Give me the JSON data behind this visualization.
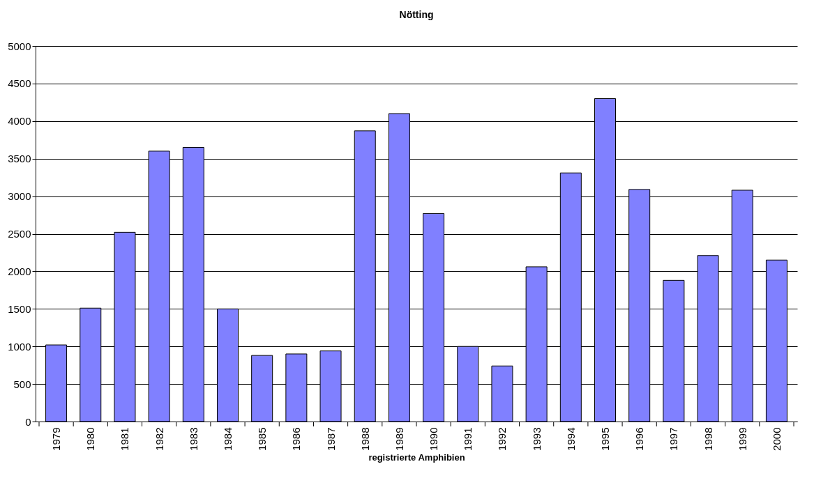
{
  "chart_data": {
    "type": "bar",
    "title": "Nötting",
    "xlabel": "registrierte Amphibien",
    "categories": [
      "1979",
      "1980",
      "1981",
      "1982",
      "1983",
      "1984",
      "1985",
      "1986",
      "1987",
      "1988",
      "1989",
      "1990",
      "1991",
      "1992",
      "1993",
      "1994",
      "1995",
      "1996",
      "1997",
      "1998",
      "1999",
      "2000"
    ],
    "values": [
      1020,
      1510,
      2520,
      3600,
      3650,
      1500,
      880,
      900,
      940,
      3870,
      4100,
      2770,
      1000,
      740,
      2060,
      3310,
      4300,
      3090,
      1880,
      2210,
      3080,
      2150
    ],
    "color": "#8080ff",
    "ylim": [
      0,
      5000
    ],
    "yticks": [
      0,
      500,
      1000,
      1500,
      2000,
      2500,
      3000,
      3500,
      4000,
      4500,
      5000
    ],
    "grid": "y"
  }
}
